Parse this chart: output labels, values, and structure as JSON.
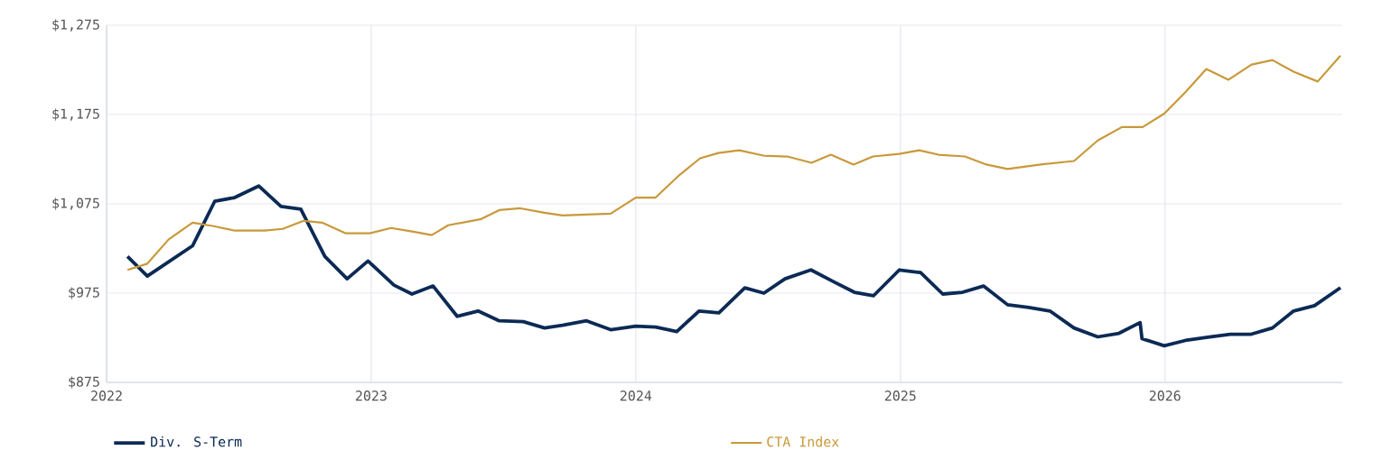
{
  "chart_data": {
    "type": "line",
    "xlim": [
      2022,
      2026.67
    ],
    "xticks": [
      2022,
      2023,
      2024,
      2025,
      2026
    ],
    "ylim": [
      875,
      1275
    ],
    "yticks": [
      {
        "value": 875,
        "label": "$875"
      },
      {
        "value": 975,
        "label": "$975"
      },
      {
        "value": 1075,
        "label": "$1,075"
      },
      {
        "value": 1175,
        "label": "$1,175"
      },
      {
        "value": 1275,
        "label": "$1,275"
      }
    ],
    "grid": true,
    "legend": "bottom",
    "marker": "none",
    "line_style": "solid",
    "series": [
      {
        "name": "Div. S-Term",
        "color": "#0b2a55",
        "x": [
          2022.079,
          2022.154,
          2022.325,
          2022.409,
          2022.484,
          2022.575,
          2022.659,
          2022.734,
          2022.825,
          2022.909,
          2022.988,
          2023.086,
          2023.154,
          2023.234,
          2023.325,
          2023.404,
          2023.484,
          2023.575,
          2023.655,
          2023.723,
          2023.814,
          2023.905,
          2024.0,
          2024.075,
          2024.155,
          2024.239,
          2024.314,
          2024.412,
          2024.484,
          2024.564,
          2024.662,
          2024.746,
          2024.826,
          2024.898,
          2024.996,
          2025.076,
          2025.16,
          2025.235,
          2025.314,
          2025.405,
          2025.485,
          2025.565,
          2025.656,
          2025.746,
          2025.826,
          2025.906,
          2025.913,
          2025.997,
          2026.077,
          2026.168,
          2026.247,
          2026.326,
          2026.406,
          2026.486,
          2026.565,
          2026.663
        ],
        "values": [
          1016,
          994,
          1028,
          1078,
          1082,
          1095,
          1072,
          1069,
          1016,
          991,
          1011,
          984,
          974,
          983,
          949,
          955,
          944,
          943,
          936,
          939,
          944,
          934,
          938,
          937,
          932,
          955,
          953,
          981,
          975,
          991,
          1001,
          988,
          976,
          972,
          1001,
          998,
          974,
          976,
          983,
          962,
          959,
          955,
          936,
          926,
          930,
          942,
          924,
          916,
          922,
          926,
          929,
          929,
          936,
          955,
          961,
          981
        ]
      },
      {
        "name": "CTA Index",
        "color": "#c8993a",
        "x": [
          2022.079,
          2022.154,
          2022.234,
          2022.325,
          2022.405,
          2022.484,
          2022.598,
          2022.666,
          2022.745,
          2022.814,
          2022.904,
          2022.995,
          2023.075,
          2023.154,
          2023.229,
          2023.291,
          2023.416,
          2023.484,
          2023.564,
          2023.655,
          2023.723,
          2023.905,
          2024.0,
          2024.075,
          2024.164,
          2024.243,
          2024.312,
          2024.391,
          2024.482,
          2024.573,
          2024.664,
          2024.737,
          2024.823,
          2024.896,
          2024.996,
          2025.071,
          2025.144,
          2025.244,
          2025.325,
          2025.405,
          2025.53,
          2025.656,
          2025.746,
          2025.837,
          2025.916,
          2025.997,
          2026.077,
          2026.156,
          2026.24,
          2026.327,
          2026.406,
          2026.486,
          2026.577,
          2026.663
        ],
        "values": [
          1001,
          1008,
          1035,
          1054,
          1050,
          1045,
          1045,
          1047,
          1056,
          1054,
          1042,
          1042,
          1048,
          1044,
          1040,
          1051,
          1058,
          1068,
          1070,
          1065,
          1062,
          1064,
          1082,
          1082,
          1107,
          1126,
          1132,
          1135,
          1129,
          1128,
          1121,
          1130,
          1119,
          1128,
          1131,
          1135,
          1130,
          1128,
          1119,
          1114,
          1119,
          1123,
          1146,
          1161,
          1161,
          1176,
          1200,
          1226,
          1214,
          1231,
          1236,
          1223,
          1212,
          1241
        ]
      }
    ]
  }
}
